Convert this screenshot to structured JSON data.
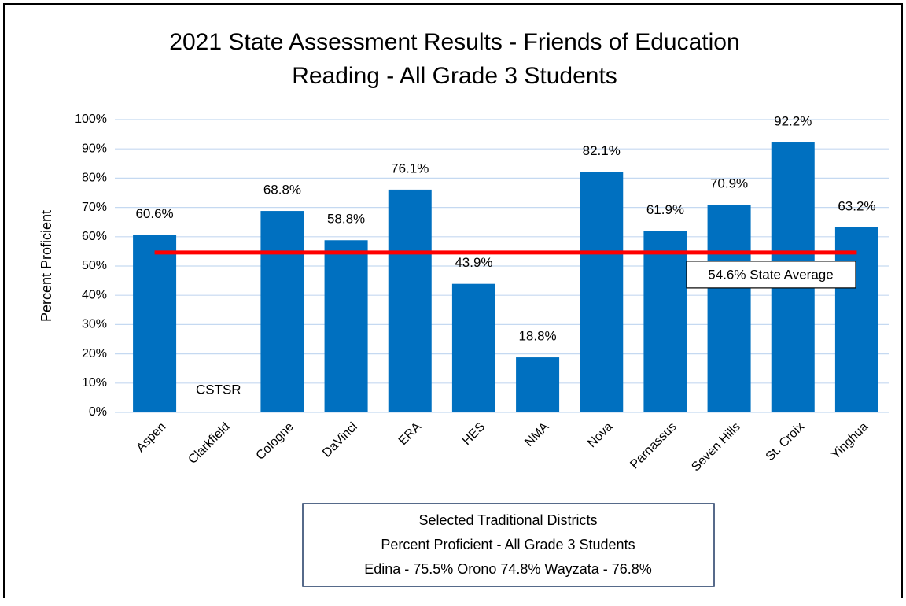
{
  "chart_data": {
    "type": "bar",
    "title": [
      "2021 State Assessment Results - Friends of Education",
      "Reading - All Grade 3 Students"
    ],
    "y_label": "Percent Proficient",
    "categories": [
      "Aspen",
      "Clarkfield",
      "Cologne",
      "DaVinci",
      "ERA",
      "HES",
      "NMA",
      "Nova",
      "Parnassus",
      "Seven Hills",
      "St. Croix",
      "Yinghua"
    ],
    "values": [
      60.6,
      null,
      68.8,
      58.8,
      76.1,
      43.9,
      18.8,
      82.1,
      61.9,
      70.9,
      92.2,
      63.2
    ],
    "value_labels": [
      "60.6%",
      "CSTSR",
      "68.8%",
      "58.8%",
      "76.1%",
      "43.9%",
      "18.8%",
      "82.1%",
      "61.9%",
      "70.9%",
      "92.2%",
      "63.2%"
    ],
    "color": "#0070c0",
    "ylim": [
      0,
      100
    ],
    "yticks": [
      {
        "value": 0,
        "label": "0%"
      },
      {
        "value": 10,
        "label": "10%"
      },
      {
        "value": 20,
        "label": "20%"
      },
      {
        "value": 30,
        "label": "30%"
      },
      {
        "value": 40,
        "label": "40%"
      },
      {
        "value": 50,
        "label": "50%"
      },
      {
        "value": 60,
        "label": "60%"
      },
      {
        "value": 70,
        "label": "70%"
      },
      {
        "value": 80,
        "label": "80%"
      },
      {
        "value": 90,
        "label": "90%"
      },
      {
        "value": 100,
        "label": "100%"
      }
    ],
    "grid": true,
    "reference_line": {
      "value": 54.6,
      "label": "54.6% State Average",
      "color": "#ff0000"
    },
    "note_box": [
      "Selected Traditional Districts",
      "Percent Proficient - All Grade 3 Students",
      "Edina - 75.5%   Orono 74.8%   Wayzata - 76.8%"
    ]
  }
}
